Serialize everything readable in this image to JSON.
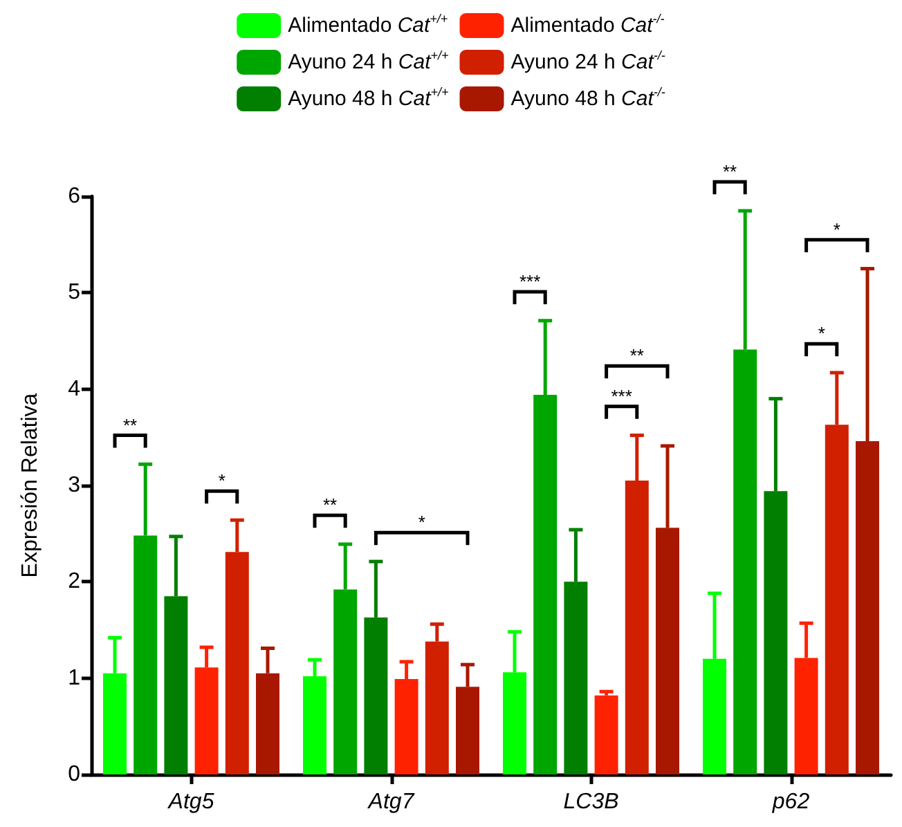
{
  "chart_data": {
    "type": "bar",
    "ylabel": "Expresión Relativa",
    "categories": [
      "Atg5",
      "Atg7",
      "LC3B",
      "p62"
    ],
    "ylim": [
      0,
      6
    ],
    "yticks": [
      0,
      1,
      2,
      3,
      4,
      5,
      6
    ],
    "grid": false,
    "legend": "top",
    "series": [
      {
        "name": "Alimentado Cat$^{+/+}$",
        "color": "#00ff00",
        "values": [
          1.05,
          1.02,
          1.06,
          1.2
        ],
        "errors": [
          [
            1.05,
            1.42
          ],
          [
            1.02,
            1.19
          ],
          [
            1.06,
            1.48
          ],
          [
            1.2,
            1.88
          ]
        ]
      },
      {
        "name": "Ayuno 24 h Cat$^{+/+}$",
        "color": "#00a600",
        "values": [
          2.48,
          1.92,
          3.94,
          4.41
        ],
        "errors": [
          [
            2.48,
            3.22
          ],
          [
            1.92,
            2.39
          ],
          [
            3.94,
            4.71
          ],
          [
            4.41,
            5.85
          ]
        ]
      },
      {
        "name": "Ayuno 48 h Cat$^{+/+}$",
        "color": "#007f00",
        "values": [
          1.85,
          1.63,
          2.0,
          2.94
        ],
        "errors": [
          [
            1.85,
            2.47
          ],
          [
            1.63,
            2.21
          ],
          [
            2.0,
            2.54
          ],
          [
            2.94,
            3.9
          ]
        ]
      },
      {
        "name": "Alimentado Cat$^{-/-}$",
        "color": "#ff2200",
        "values": [
          1.11,
          0.99,
          0.82,
          1.21
        ],
        "errors": [
          [
            1.11,
            1.32
          ],
          [
            0.99,
            1.17
          ],
          [
            0.82,
            0.86
          ],
          [
            1.21,
            1.57
          ]
        ]
      },
      {
        "name": "Ayuno 24 h Cat$^{-/-}$",
        "color": "#d02000",
        "values": [
          2.31,
          1.38,
          3.05,
          3.63
        ],
        "errors": [
          [
            2.31,
            2.64
          ],
          [
            1.38,
            1.56
          ],
          [
            3.05,
            3.52
          ],
          [
            3.63,
            4.17
          ]
        ]
      },
      {
        "name": "Ayuno 48 h Cat$^{-/-}$",
        "color": "#a81800",
        "values": [
          1.05,
          0.91,
          2.56,
          3.46
        ],
        "errors": [
          [
            1.05,
            1.31
          ],
          [
            0.91,
            1.14
          ],
          [
            2.56,
            3.41
          ],
          [
            3.46,
            5.25
          ]
        ]
      }
    ],
    "annotations": [
      "**",
      "*",
      "**",
      "*",
      "***",
      "**",
      "***",
      "**",
      "*",
      "*"
    ]
  }
}
